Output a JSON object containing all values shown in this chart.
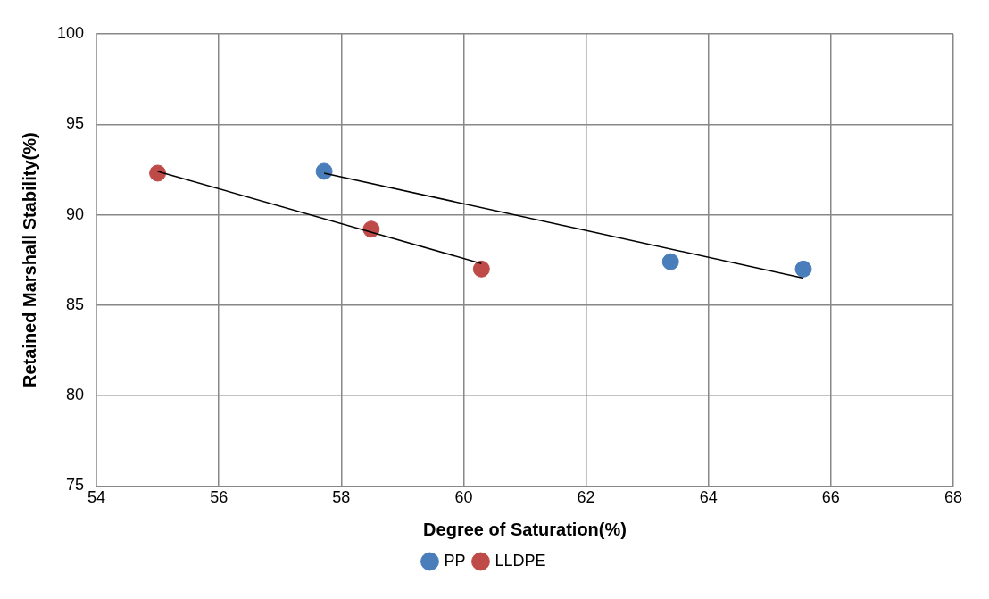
{
  "chart_data": {
    "type": "scatter",
    "xlabel": "Degree of Saturation(%)",
    "ylabel": "Retained Marshall Stability(%)",
    "xlim": [
      54,
      68
    ],
    "xticks": [
      54,
      56,
      58,
      60,
      62,
      64,
      66,
      68
    ],
    "ylim": [
      75,
      100
    ],
    "yticks": [
      75,
      80,
      85,
      90,
      95,
      100
    ],
    "grid": true,
    "legend": "bottom",
    "marker": "circle",
    "series": [
      {
        "name": "PP",
        "color": "#4a7ebb",
        "x": [
          57.72,
          63.38,
          65.55
        ],
        "values": [
          92.4,
          87.4,
          87.0
        ]
      },
      {
        "name": "LLDPE",
        "color": "#be4b48",
        "x": [
          55.0,
          58.49,
          60.29
        ],
        "values": [
          92.3,
          89.2,
          87.0
        ]
      },
      {
        "type": "line",
        "color": "#000000",
        "marker": "none",
        "x": [
          57.72,
          65.55
        ],
        "values": [
          92.3,
          86.5
        ]
      },
      {
        "type": "line",
        "color": "#000000",
        "marker": "none",
        "x": [
          55.0,
          60.29
        ],
        "values": [
          92.4,
          87.3
        ]
      }
    ]
  }
}
